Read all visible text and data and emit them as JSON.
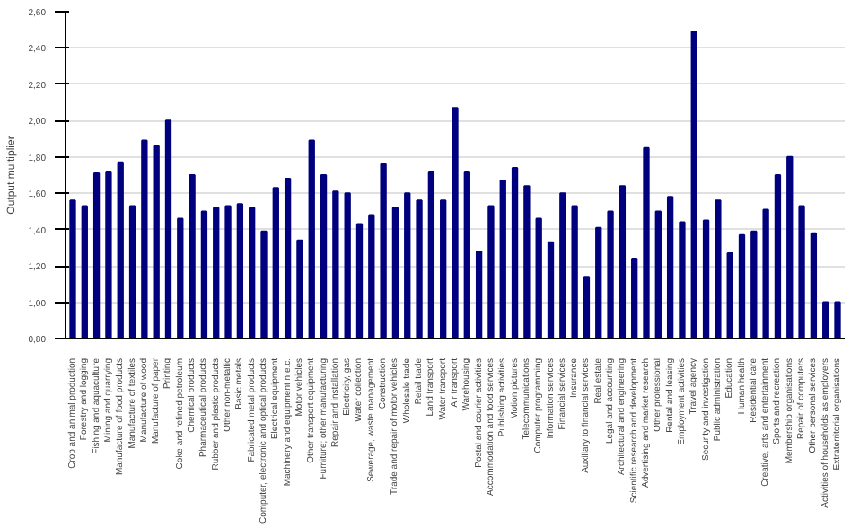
{
  "chart_data": {
    "type": "bar",
    "ylabel": "Output multiplier",
    "categories": [
      "Crop and animal production",
      "Forestry and logging",
      "Fishing and aquaculture",
      "Mining and quarrying",
      "Manufacture of food products",
      "Manufacture of textiles",
      "Manufacture of wood",
      "Manufacture of paper",
      "Printing",
      "Coke and refined petroleum",
      "Chemical products",
      "Pharmaceutical products",
      "Rubber and plastic products",
      "Other non-metallic",
      "Basic metals",
      "Fabricated metal products",
      "Computer, electronic and optical products",
      "Electrical equipment",
      "Machinery and equipment n.e.c.",
      "Motor vehicles",
      "Other transport equipment",
      "Furniture; other manufacturing",
      "Repair and installation",
      "Electricity, gas",
      "Water collection",
      "Sewerage, waste management",
      "Construction",
      "Trade and repair of motor vehicles",
      "Wholesale trade",
      "Retail trade",
      "Land transport",
      "Water transport",
      "Air transport",
      "Warehousing",
      "Postal and courier activities",
      "Accommodation and food services",
      "Publishing activities",
      "Motion pictures",
      "Telecommunications",
      "Computer programming",
      "Information services",
      "Financial services",
      "Insurance",
      "Auxiliary to financial services",
      "Real estate",
      "Legal and accounting",
      "Architectural and engineering",
      "Scientific research and development",
      "Advertising and market research",
      "Other professional",
      "Rental and leasing",
      "Employment activities",
      "Travel agency",
      "Security and investigation",
      "Public administration",
      "Education",
      "Human health",
      "Residential care",
      "Creative, arts and entertainment",
      "Sports and recreation",
      "Membership organisations",
      "Repair of computers",
      "Other personal services",
      "Activities of households as employers",
      "Extraterritorial organisations"
    ],
    "values": [
      1.56,
      1.53,
      1.71,
      1.72,
      1.77,
      1.53,
      1.89,
      1.86,
      2.0,
      1.46,
      1.7,
      1.5,
      1.52,
      1.53,
      1.54,
      1.52,
      1.39,
      1.63,
      1.68,
      1.34,
      1.89,
      1.7,
      1.61,
      1.6,
      1.43,
      1.48,
      1.76,
      1.52,
      1.6,
      1.56,
      1.72,
      1.56,
      2.07,
      1.72,
      1.28,
      1.53,
      1.67,
      1.74,
      1.64,
      1.46,
      1.33,
      1.6,
      1.53,
      1.14,
      1.41,
      1.5,
      1.64,
      1.24,
      1.85,
      1.5,
      1.58,
      1.44,
      2.49,
      1.45,
      1.56,
      1.27,
      1.37,
      1.39,
      1.51,
      1.7,
      1.8,
      1.53,
      1.38,
      1.0,
      1.0
    ],
    "color": "#00007f",
    "ylim": [
      0.8,
      2.6
    ],
    "yticks": [
      {
        "value": 0.8,
        "label": "0,80"
      },
      {
        "value": 1.0,
        "label": "1,00"
      },
      {
        "value": 1.2,
        "label": "1,20"
      },
      {
        "value": 1.4,
        "label": "1,40"
      },
      {
        "value": 1.6,
        "label": "1,60"
      },
      {
        "value": 1.8,
        "label": "1,80"
      },
      {
        "value": 2.0,
        "label": "2,00"
      },
      {
        "value": 2.2,
        "label": "2,20"
      },
      {
        "value": 2.4,
        "label": "2,40"
      },
      {
        "value": 2.6,
        "label": "2,60"
      }
    ],
    "grid": "y"
  }
}
